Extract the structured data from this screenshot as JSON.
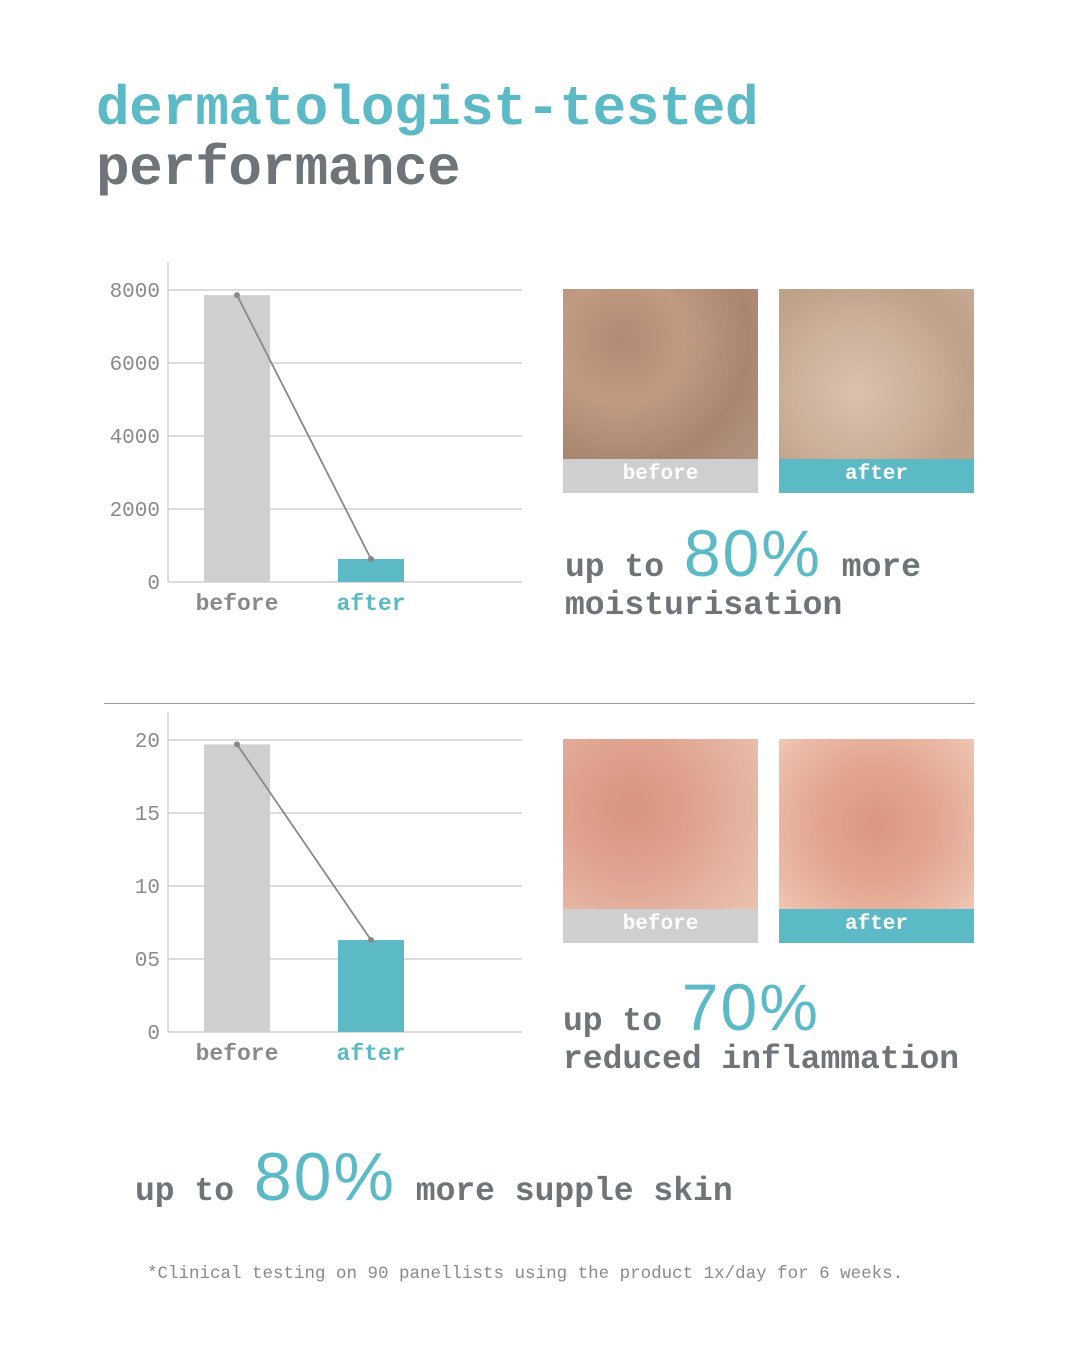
{
  "title": {
    "line1": "dermatologist-tested",
    "line2": "performance"
  },
  "colors": {
    "accent": "#5bbac6",
    "text": "#6f7478",
    "before_bar": "#cfcfcf",
    "grid": "#d0d0d0",
    "line": "#888888"
  },
  "chart_data": [
    {
      "type": "bar",
      "categories": [
        "before",
        "after"
      ],
      "values": [
        7860,
        630
      ],
      "overlay_line": true,
      "yticks": [
        "0",
        "2000",
        "4000",
        "6000",
        "8000"
      ],
      "ylim": [
        0,
        8000
      ],
      "grid": true
    },
    {
      "type": "bar",
      "categories": [
        "before",
        "after"
      ],
      "values": [
        19.7,
        6.3
      ],
      "overlay_line": true,
      "yticks": [
        "0",
        "05",
        "10",
        "15",
        "20"
      ],
      "ylim": [
        0,
        20
      ],
      "grid": true
    }
  ],
  "sections": [
    {
      "photos": [
        {
          "label": "before"
        },
        {
          "label": "after"
        }
      ],
      "stat": {
        "prefix": "up to",
        "value": "80%",
        "suffix": "more",
        "line2": "moisturisation"
      }
    },
    {
      "photos": [
        {
          "label": "before"
        },
        {
          "label": "after"
        }
      ],
      "stat": {
        "prefix": "up to",
        "value": "70%",
        "suffix": "",
        "line2": "reduced inflammation"
      }
    }
  ],
  "bottom_stat": {
    "prefix": "up to",
    "value": "80%",
    "suffix": "more supple skin"
  },
  "footnote": "*Clinical testing on 90 panellists using the product 1x/day for 6 weeks."
}
